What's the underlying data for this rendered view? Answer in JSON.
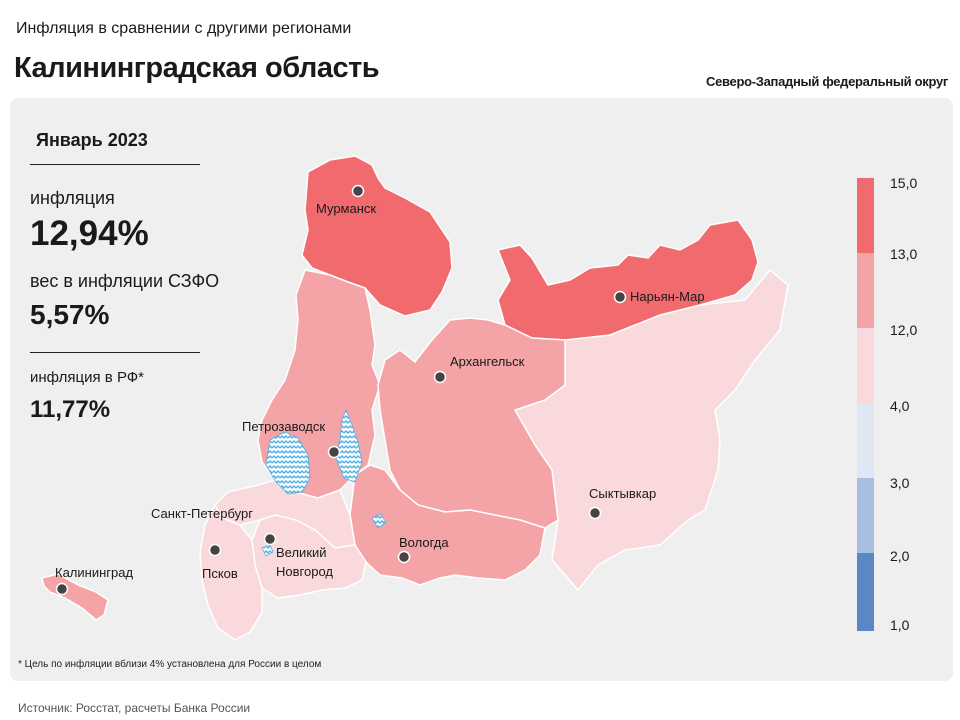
{
  "header": {
    "supertitle": "Инфляция в сравнении с другими регионами",
    "title": "Калининградская область",
    "district": "Северо-Западный федеральный округ"
  },
  "stats": {
    "period": "Январь 2023",
    "inflation_label": "инфляция",
    "inflation_value": "12,94%",
    "weight_label": "вес в инфляции  СЗФО",
    "weight_value": "5,57%",
    "rf_label": "инфляция  в РФ*",
    "rf_value": "11,77%"
  },
  "cities": [
    {
      "name": "Мурманск"
    },
    {
      "name": "Нарьян-Мар"
    },
    {
      "name": "Архангельск"
    },
    {
      "name": "Петрозаводск"
    },
    {
      "name": "Сыктывкар"
    },
    {
      "name": "Санкт-Петербург"
    },
    {
      "name": "Вологда"
    },
    {
      "name": "Великий"
    },
    {
      "name": "Новгород"
    },
    {
      "name": "Псков"
    },
    {
      "name": "Калининград"
    }
  ],
  "legend": {
    "ticks": [
      "15,0",
      "13,0",
      "12,0",
      "4,0",
      "3,0",
      "2,0",
      "1,0"
    ],
    "colors": [
      "#f06a6e",
      "#f4a3a6",
      "#f9d9dc",
      "#dfe6f4",
      "#a8bfe0",
      "#5b87c4"
    ]
  },
  "colors": {
    "high": "#f06a6e",
    "mid": "#f4a3a6",
    "low": "#f9d9dc",
    "water": "#4fb0e6"
  },
  "footnote": "* Цель по инфляции вблизи 4% установлена для России в целом",
  "source": "Источник: Росстат, расчеты Банка России"
}
